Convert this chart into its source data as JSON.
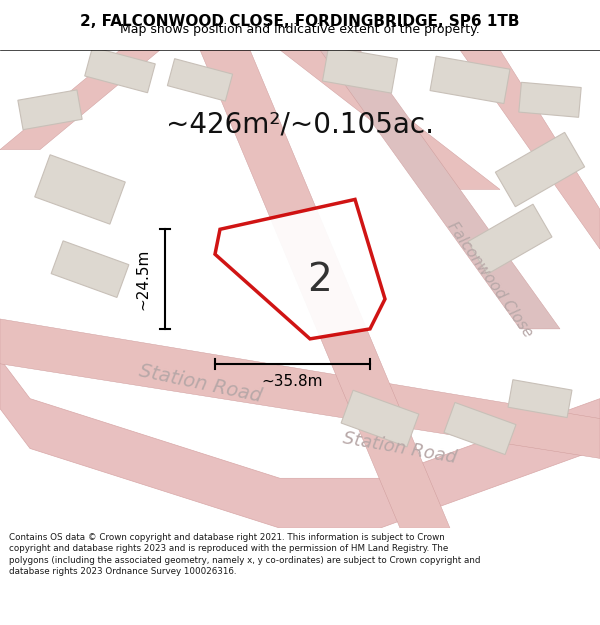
{
  "title_line1": "2, FALCONWOOD CLOSE, FORDINGBRIDGE, SP6 1TB",
  "title_line2": "Map shows position and indicative extent of the property.",
  "area_text": "~426m²/~0.105ac.",
  "plot_number": "2",
  "dim_height": "~24.5m",
  "dim_width": "~35.8m",
  "street_label1": "Station Road",
  "street_label2": "Station Road",
  "street_label3": "Falconwood Close",
  "footer_text": "Contains OS data © Crown copyright and database right 2021. This information is subject to Crown copyright and database rights 2023 and is reproduced with the permission of HM Land Registry. The polygons (including the associated geometry, namely x, y co-ordinates) are subject to Crown copyright and database rights 2023 Ordnance Survey 100026316.",
  "bg_color": "#f5f0f0",
  "map_bg": "#f0ece8",
  "road_color": "#e8c8c8",
  "building_color": "#e0d8d0",
  "plot_fill": "#ffffff",
  "plot_edge": "#cc0000",
  "dim_color": "#000000",
  "text_color": "#000000",
  "road_label_color": "#b0a0a0",
  "footer_bg": "#ffffff"
}
